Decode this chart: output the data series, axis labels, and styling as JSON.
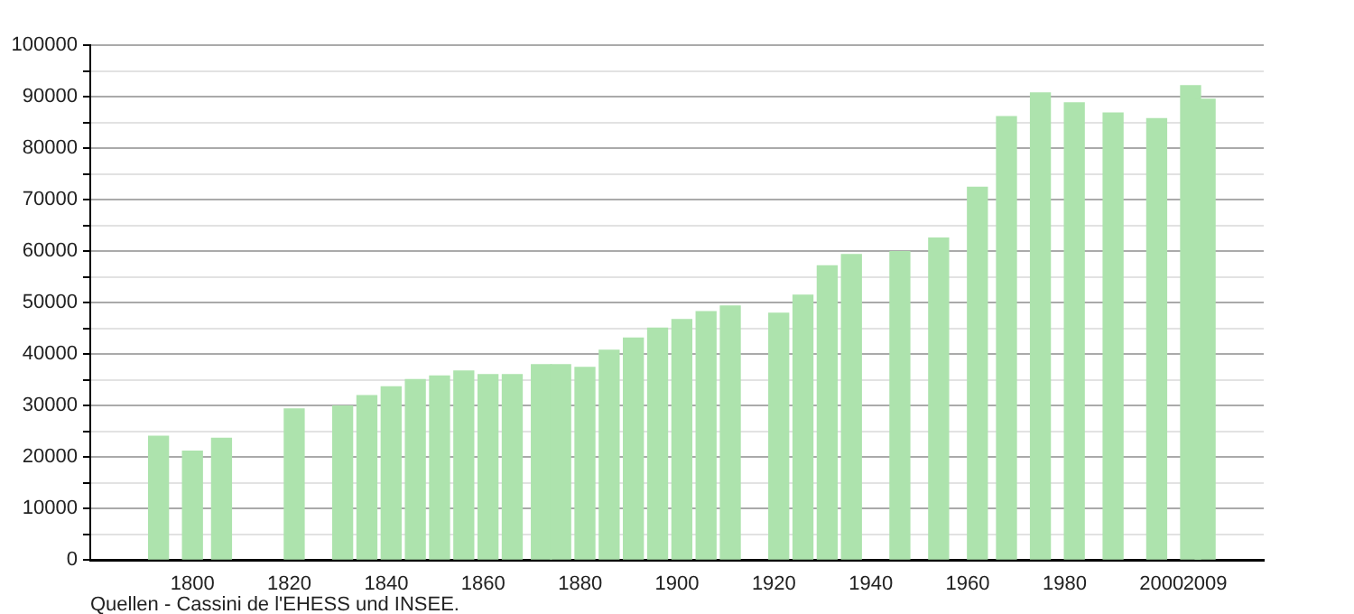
{
  "chart_data": {
    "type": "bar",
    "color": "#ade3ad",
    "x": [
      1793,
      1800,
      1806,
      1821,
      1831,
      1836,
      1841,
      1846,
      1851,
      1856,
      1861,
      1866,
      1872,
      1876,
      1881,
      1886,
      1891,
      1896,
      1901,
      1906,
      1911,
      1921,
      1926,
      1931,
      1936,
      1946,
      1954,
      1962,
      1968,
      1975,
      1982,
      1990,
      1999,
      2006,
      2007,
      2008,
      2009
    ],
    "values": [
      24000,
      21100,
      23600,
      29300,
      29900,
      31900,
      33600,
      35000,
      35700,
      36700,
      36000,
      36000,
      37900,
      37900,
      37400,
      40700,
      43100,
      45000,
      46700,
      48200,
      49300,
      47900,
      51400,
      57100,
      59300,
      59900,
      62500,
      72400,
      86100,
      90700,
      88800,
      86800,
      85700,
      92100,
      null,
      null,
      89500
    ],
    "xlim": [
      1789,
      2011
    ],
    "xticks": [
      1800,
      1820,
      1840,
      1860,
      1880,
      1900,
      1920,
      1940,
      1960,
      1980,
      2000,
      2009
    ],
    "ylim": [
      0,
      100000
    ],
    "yticks": [
      0,
      {
        "value": 5000,
        "label": null
      },
      10000,
      {
        "value": 15000,
        "label": null
      },
      20000,
      {
        "value": 25000,
        "label": null
      },
      30000,
      {
        "value": 35000,
        "label": null
      },
      40000,
      {
        "value": 45000,
        "label": null
      },
      50000,
      {
        "value": 55000,
        "label": null
      },
      60000,
      {
        "value": 65000,
        "label": null
      },
      70000,
      {
        "value": 75000,
        "label": null
      },
      80000,
      {
        "value": 85000,
        "label": null
      },
      90000,
      {
        "value": 95000,
        "label": null
      },
      100000
    ],
    "grid": "y",
    "annotations": [
      "Quellen - Cassini de l'EHESS und INSEE."
    ]
  }
}
